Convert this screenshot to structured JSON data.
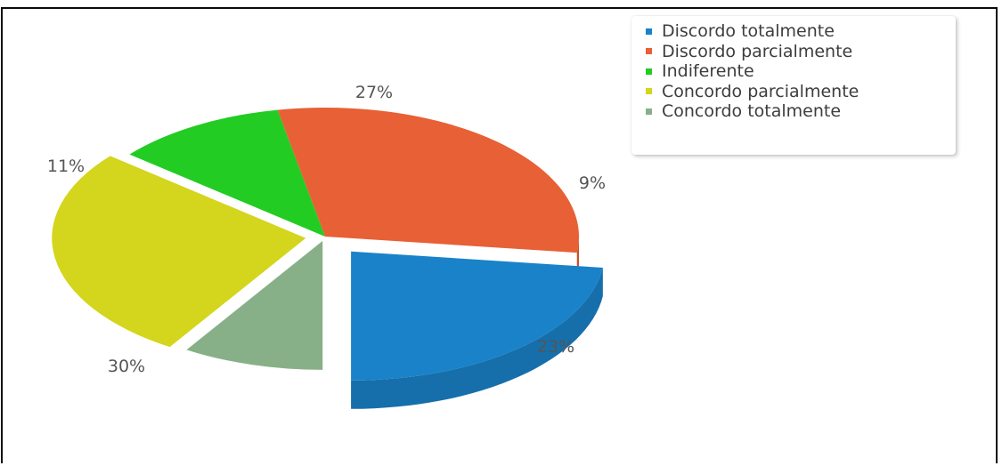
{
  "chart_data": {
    "type": "pie",
    "title": "",
    "slices": [
      {
        "name": "Discordo totalmente",
        "value": 23,
        "label": "23%",
        "color": "#1a82c8"
      },
      {
        "name": "Discordo parcialmente",
        "value": 30,
        "label": "30%",
        "color": "#e86035"
      },
      {
        "name": "Indiferente",
        "value": 11,
        "label": "11%",
        "color": "#23cc23"
      },
      {
        "name": "Concordo parcialmente",
        "value": 27,
        "label": "27%",
        "color": "#d4d51d"
      },
      {
        "name": "Concordo totalmente",
        "value": 9,
        "label": "9%",
        "color": "#88b088"
      }
    ],
    "three_d": true,
    "exploded": true,
    "legend_position": "top-right"
  }
}
